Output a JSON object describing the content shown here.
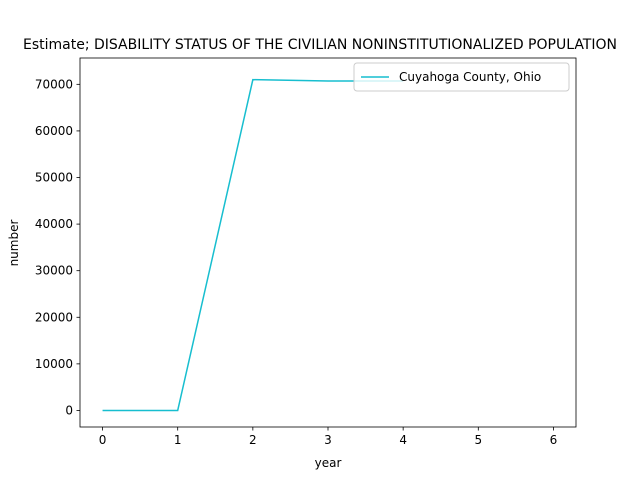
{
  "chart_data": {
    "type": "line",
    "title": "Estimate; DISABILITY STATUS OF THE CIVILIAN NONINSTITUTIONALIZED POPULATION",
    "xlabel": "year",
    "ylabel": "number",
    "x": [
      0,
      1,
      2,
      3,
      4,
      5,
      6
    ],
    "xticks": [
      "0",
      "1",
      "2",
      "3",
      "4",
      "5",
      "6"
    ],
    "xlim": [
      -0.3,
      6.3
    ],
    "yticks": [
      "0",
      "10000",
      "20000",
      "30000",
      "40000",
      "50000",
      "60000",
      "70000"
    ],
    "ylim": [
      -3550,
      75650
    ],
    "grid": false,
    "legend_position": "top-right",
    "series": [
      {
        "name": "Cuyahoga County, Ohio",
        "color": "#17becf",
        "x": [
          0,
          1,
          2,
          3,
          4
        ],
        "values": [
          0,
          0,
          71000,
          70700,
          70700
        ]
      }
    ]
  }
}
